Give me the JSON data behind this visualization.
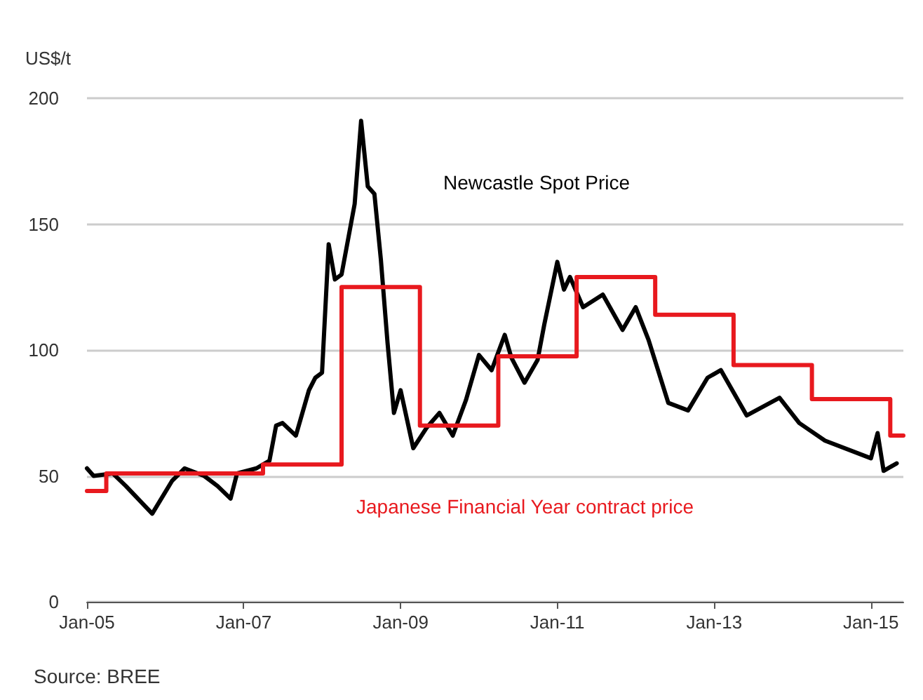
{
  "chart_data": {
    "type": "line",
    "ylabel": "US$/t",
    "xlim": [
      "2005-01",
      "2015-06"
    ],
    "xticks": [
      {
        "value": "2005-01",
        "label": "Jan-05"
      },
      {
        "value": "2007-01",
        "label": "Jan-07"
      },
      {
        "value": "2009-01",
        "label": "Jan-09"
      },
      {
        "value": "2011-01",
        "label": "Jan-11"
      },
      {
        "value": "2013-01",
        "label": "Jan-13"
      },
      {
        "value": "2015-01",
        "label": "Jan-15"
      }
    ],
    "ylim": [
      0,
      200
    ],
    "yticks": [
      0,
      50,
      100,
      150,
      200
    ],
    "grid": "y",
    "legend": false,
    "marker": "none",
    "line_style": "solid",
    "series": [
      {
        "name": "Newcastle Spot Price",
        "color": "#000000",
        "x": [
          "2005-01",
          "2005-02",
          "2005-05",
          "2005-07",
          "2005-11",
          "2006-02",
          "2006-04",
          "2006-07",
          "2006-09",
          "2006-11",
          "2006-12",
          "2007-03",
          "2007-05",
          "2007-06",
          "2007-07",
          "2007-09",
          "2007-11",
          "2007-12",
          "2008-01",
          "2008-02",
          "2008-03",
          "2008-04",
          "2008-06",
          "2008-07",
          "2008-08",
          "2008-09",
          "2008-10",
          "2008-11",
          "2008-12",
          "2009-01",
          "2009-03",
          "2009-05",
          "2009-07",
          "2009-09",
          "2009-11",
          "2010-01",
          "2010-03",
          "2010-05",
          "2010-06",
          "2010-08",
          "2010-10",
          "2010-11",
          "2011-01",
          "2011-02",
          "2011-03",
          "2011-05",
          "2011-08",
          "2011-11",
          "2012-01",
          "2012-03",
          "2012-06",
          "2012-09",
          "2012-12",
          "2013-02",
          "2013-06",
          "2013-11",
          "2014-02",
          "2014-06",
          "2015-01",
          "2015-02",
          "2015-03",
          "2015-05"
        ],
        "values": [
          53,
          50,
          51,
          46,
          35,
          48,
          53,
          50,
          46,
          41,
          51,
          53,
          56,
          70,
          71,
          66,
          84,
          89,
          91,
          142,
          128,
          130,
          158,
          191,
          165,
          162,
          136,
          103,
          75,
          84,
          61,
          69,
          75,
          66,
          80,
          98,
          92,
          106,
          97,
          87,
          96,
          110,
          135,
          124,
          129,
          117,
          122,
          108,
          117,
          104,
          79,
          76,
          89,
          92,
          74,
          81,
          71,
          64,
          57,
          67,
          52,
          55
        ]
      },
      {
        "name": "Japanese Financial Year contract price",
        "color": "#e8191e",
        "type": "step",
        "x": [
          "2005-01",
          "2005-04",
          "2007-04",
          "2008-04",
          "2009-04",
          "2010-04",
          "2011-04",
          "2012-04",
          "2013-04",
          "2014-04",
          "2015-04",
          "2015-06"
        ],
        "values": [
          44,
          51,
          54.5,
          125,
          70,
          97.5,
          129,
          114,
          94,
          80.5,
          66,
          66
        ]
      }
    ],
    "annotations": [
      "Source: BREE"
    ]
  }
}
